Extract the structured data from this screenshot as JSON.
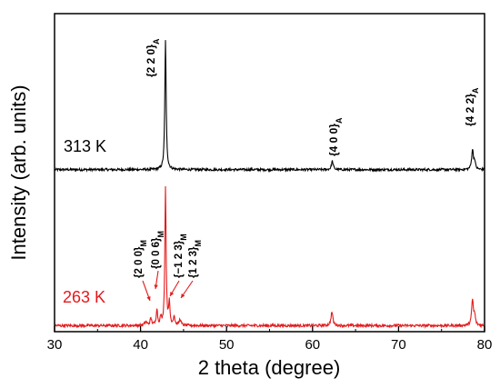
{
  "chart_data": {
    "type": "line",
    "title": "",
    "xlabel": "2 theta (degree)",
    "ylabel": "Intensity (arb. units)",
    "xlim": [
      30,
      80
    ],
    "xticks": [
      "30",
      "40",
      "50",
      "60",
      "70",
      "80"
    ],
    "ylim": [
      0,
      1.05
    ],
    "yticks_labeled": false,
    "grid": false,
    "legend": "none",
    "series": [
      {
        "name": "313 K",
        "color": "#000000",
        "baseline": 0.535,
        "noise": 0.004,
        "peaks": [
          {
            "x": 42.9,
            "height": 0.43,
            "width": 0.09
          },
          {
            "x": 62.3,
            "height": 0.028,
            "width": 0.12
          },
          {
            "x": 78.6,
            "height": 0.065,
            "width": 0.12
          },
          {
            "x": 78.85,
            "height": 0.025,
            "width": 0.1
          }
        ],
        "annotations": [
          {
            "base": "{2 2 0}",
            "sub": "A",
            "x": 42.9
          },
          {
            "base": "{4 0 0}",
            "sub": "A",
            "x": 62.3
          },
          {
            "base": "{4 2 2}",
            "sub": "A",
            "x": 78.6
          }
        ]
      },
      {
        "name": "263 K",
        "color": "#e41a1c",
        "baseline": 0.02,
        "noise": 0.0045,
        "peaks": [
          {
            "x": 40.6,
            "height": 0.012,
            "width": 0.15
          },
          {
            "x": 41.2,
            "height": 0.022,
            "width": 0.12
          },
          {
            "x": 41.9,
            "height": 0.055,
            "width": 0.09
          },
          {
            "x": 42.35,
            "height": 0.025,
            "width": 0.08
          },
          {
            "x": 42.9,
            "height": 0.46,
            "width": 0.085
          },
          {
            "x": 43.35,
            "height": 0.075,
            "width": 0.08
          },
          {
            "x": 43.9,
            "height": 0.03,
            "width": 0.1
          },
          {
            "x": 44.6,
            "height": 0.02,
            "width": 0.12
          },
          {
            "x": 62.25,
            "height": 0.045,
            "width": 0.13
          },
          {
            "x": 78.6,
            "height": 0.085,
            "width": 0.12
          },
          {
            "x": 78.85,
            "height": 0.03,
            "width": 0.1
          }
        ],
        "annotations": [
          {
            "base": "{2 0 0}",
            "sub": "M",
            "x": 41.2
          },
          {
            "base": "{0 0 6}",
            "sub": "M",
            "x": 41.9
          },
          {
            "base": "{−1 2 3}",
            "sub": "M",
            "x": 43.4
          },
          {
            "base": "{1 2 3}",
            "sub": "M",
            "x": 44.6
          }
        ]
      }
    ]
  }
}
